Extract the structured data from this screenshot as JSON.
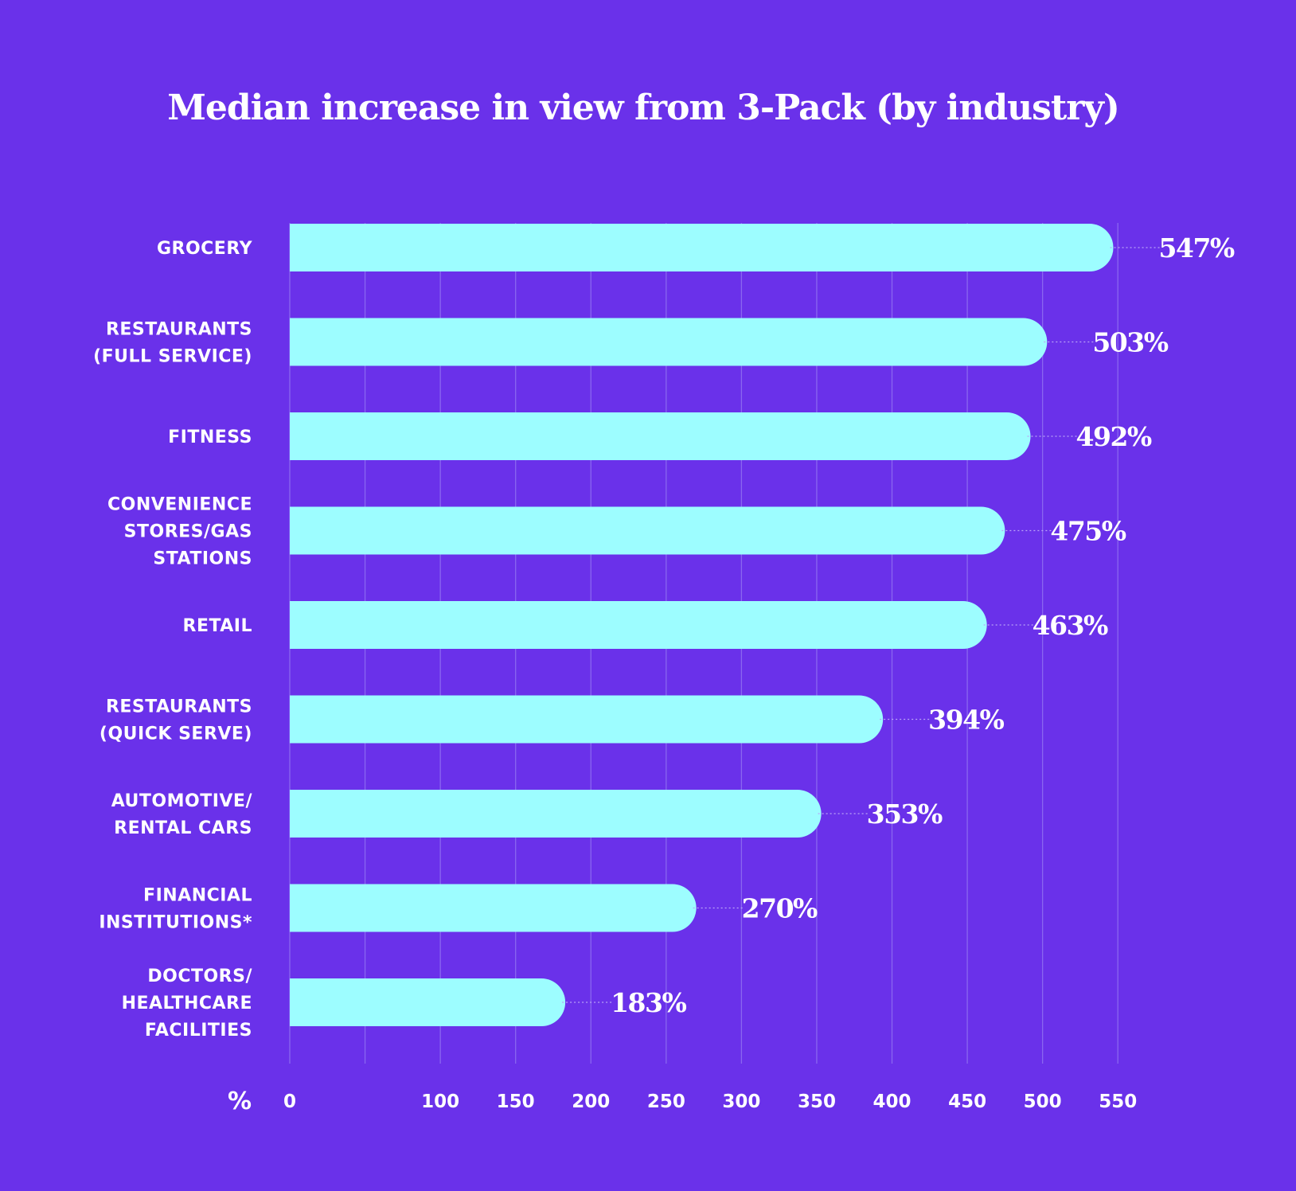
{
  "colors": {
    "background": "#6a31ea",
    "bar": "#9dfdff",
    "gridline": "#8a66f0",
    "leader": "#b9a4f7",
    "text": "#ffffff"
  },
  "chart_data": {
    "type": "bar",
    "orientation": "horizontal",
    "title": "Median increase in view from 3-Pack (by industry)",
    "xlabel": "%",
    "ylabel": "",
    "xlim": [
      0,
      550
    ],
    "xticks": [
      0,
      100,
      150,
      200,
      250,
      300,
      350,
      400,
      450,
      500,
      550
    ],
    "grid": true,
    "categories": [
      [
        "GROCERY"
      ],
      [
        "RESTAURANTS",
        "(FULL SERVICE)"
      ],
      [
        "FITNESS"
      ],
      [
        "CONVENIENCE",
        "STORES/GAS",
        "STATIONS"
      ],
      [
        "RETAIL"
      ],
      [
        "RESTAURANTS",
        "(QUICK SERVE)"
      ],
      [
        "AUTOMOTIVE/",
        "RENTAL CARS"
      ],
      [
        "FINANCIAL",
        "INSTITUTIONS*"
      ],
      [
        "DOCTORS/",
        "HEALTHCARE",
        "FACILITIES"
      ]
    ],
    "values": [
      547,
      503,
      492,
      475,
      463,
      394,
      353,
      270,
      183
    ],
    "value_labels": [
      "547%",
      "503%",
      "492%",
      "475%",
      "463%",
      "394%",
      "353%",
      "270%",
      "183%"
    ]
  }
}
